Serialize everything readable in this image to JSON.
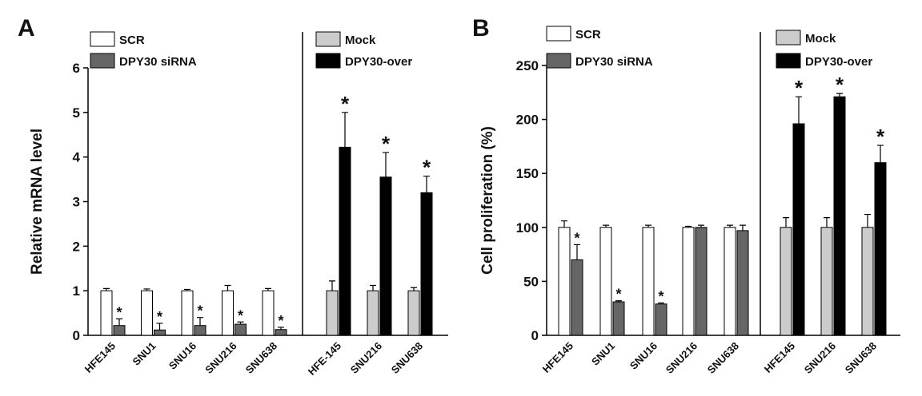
{
  "chart_data": [
    {
      "type": "bar",
      "panel": "A",
      "ylabel": "Relative mRNA level",
      "categories": [
        "HFE145",
        "SNU1",
        "SNU16",
        "SNU216",
        "SNU638",
        "HFE-145",
        "SNU216",
        "SNU638"
      ],
      "ylim": [
        0,
        6
      ],
      "yticks": [
        0,
        1,
        2,
        3,
        4,
        5,
        6
      ],
      "series": [
        {
          "name": "SCR",
          "color": "#ffffff",
          "values": [
            1,
            1,
            1,
            1,
            1,
            null,
            null,
            null
          ],
          "errors": [
            0.05,
            0.04,
            0.03,
            0.12,
            0.05,
            null,
            null,
            null
          ],
          "stars": [
            null,
            null,
            null,
            null,
            null,
            null,
            null,
            null
          ]
        },
        {
          "name": "DPY30 siRNA",
          "color": "#666666",
          "values": [
            0.22,
            0.12,
            0.22,
            0.25,
            0.13,
            null,
            null,
            null
          ],
          "errors": [
            0.15,
            0.15,
            0.18,
            0.05,
            0.05,
            null,
            null,
            null
          ],
          "stars": [
            "*",
            "*",
            "*",
            "*",
            "*",
            null,
            null,
            null
          ]
        },
        {
          "name": "Mock",
          "color": "#cccccc",
          "values": [
            null,
            null,
            null,
            null,
            null,
            1,
            1,
            1
          ],
          "errors": [
            null,
            null,
            null,
            null,
            null,
            0.22,
            0.12,
            0.07
          ],
          "stars": [
            null,
            null,
            null,
            null,
            null,
            null,
            null,
            null
          ]
        },
        {
          "name": "DPY30-over",
          "color": "#000000",
          "values": [
            null,
            null,
            null,
            null,
            null,
            4.22,
            3.55,
            3.2
          ],
          "errors": [
            null,
            null,
            null,
            null,
            null,
            0.78,
            0.55,
            0.37
          ],
          "stars": [
            null,
            null,
            null,
            null,
            null,
            "*",
            "*",
            "*"
          ]
        }
      ]
    },
    {
      "type": "bar",
      "panel": "B",
      "ylabel": "Cell proliferation (%)",
      "categories": [
        "HFE145",
        "SNU1",
        "SNU16",
        "SNU216",
        "SNU638",
        "HFE145",
        "SNU216",
        "SNU638"
      ],
      "ylim": [
        0,
        250
      ],
      "yticks": [
        0,
        50,
        100,
        150,
        200,
        250
      ],
      "series": [
        {
          "name": "SCR",
          "color": "#ffffff",
          "values": [
            100,
            100,
            100,
            100,
            100,
            null,
            null,
            null
          ],
          "errors": [
            6,
            2,
            2,
            1,
            2,
            null,
            null,
            null
          ],
          "stars": [
            null,
            null,
            null,
            null,
            null,
            null,
            null,
            null
          ]
        },
        {
          "name": "DPY30 siRNA",
          "color": "#666666",
          "values": [
            70,
            31,
            29,
            100,
            97,
            null,
            null,
            null
          ],
          "errors": [
            14,
            1,
            1,
            2,
            5,
            null,
            null,
            null
          ],
          "stars": [
            "*",
            "*",
            "*",
            null,
            null,
            null,
            null,
            null
          ]
        },
        {
          "name": "Mock",
          "color": "#cccccc",
          "values": [
            null,
            null,
            null,
            null,
            null,
            100,
            100,
            100
          ],
          "errors": [
            null,
            null,
            null,
            null,
            null,
            9,
            9,
            12
          ],
          "stars": [
            null,
            null,
            null,
            null,
            null,
            null,
            null,
            null
          ]
        },
        {
          "name": "DPY30-over",
          "color": "#000000",
          "values": [
            null,
            null,
            null,
            null,
            null,
            196,
            221,
            160
          ],
          "errors": [
            null,
            null,
            null,
            null,
            null,
            25,
            3,
            16
          ],
          "stars": [
            null,
            null,
            null,
            null,
            null,
            "*",
            "*",
            "*"
          ]
        }
      ]
    }
  ]
}
